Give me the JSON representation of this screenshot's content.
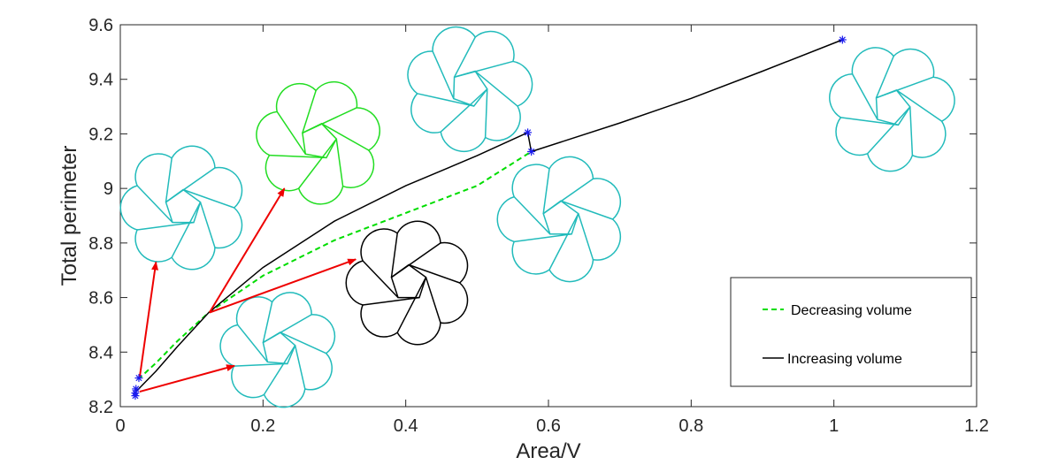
{
  "chart_data": {
    "type": "line",
    "title": "",
    "xlabel": "Area/V",
    "ylabel": "Total perimeter",
    "xlim": [
      0,
      1.2
    ],
    "ylim": [
      8.2,
      9.6
    ],
    "x_ticks": [
      "0",
      "0.2",
      "0.4",
      "0.6",
      "0.8",
      "1",
      "1.2"
    ],
    "y_ticks": [
      "8.2",
      "8.4",
      "8.6",
      "8.8",
      "9",
      "9.2",
      "9.4",
      "9.6"
    ],
    "grid": false,
    "legend_position": "bottom-right",
    "series": [
      {
        "name": "Decreasing volume",
        "color": "#00dd00",
        "style": "dashed",
        "points": [
          [
            0.025,
            8.3
          ],
          [
            0.05,
            8.36
          ],
          [
            0.08,
            8.44
          ],
          [
            0.124,
            8.545
          ],
          [
            0.2,
            8.68
          ],
          [
            0.3,
            8.81
          ],
          [
            0.4,
            8.91
          ],
          [
            0.5,
            9.01
          ],
          [
            0.576,
            9.135
          ]
        ]
      },
      {
        "name": "Increasing volume",
        "color": "#000000",
        "style": "solid",
        "points": [
          [
            0.02,
            8.25
          ],
          [
            0.05,
            8.33
          ],
          [
            0.08,
            8.42
          ],
          [
            0.124,
            8.545
          ],
          [
            0.2,
            8.71
          ],
          [
            0.3,
            8.88
          ],
          [
            0.4,
            9.01
          ],
          [
            0.5,
            9.12
          ],
          [
            0.571,
            9.205
          ],
          [
            0.576,
            9.135
          ],
          [
            0.7,
            9.24
          ],
          [
            0.8,
            9.33
          ],
          [
            0.9,
            9.43
          ],
          [
            1.012,
            9.545
          ]
        ]
      }
    ],
    "markers": [
      {
        "x": 0.022,
        "y": 8.265
      },
      {
        "x": 0.021,
        "y": 8.25
      },
      {
        "x": 0.021,
        "y": 8.24
      },
      {
        "x": 0.026,
        "y": 8.305
      },
      {
        "x": 0.571,
        "y": 9.205
      },
      {
        "x": 0.576,
        "y": 9.135
      },
      {
        "x": 1.012,
        "y": 9.545
      }
    ],
    "arrows": [
      {
        "from": [
          0.125,
          8.545
        ],
        "to": [
          0.23,
          9.0
        ]
      },
      {
        "from": [
          0.125,
          8.545
        ],
        "to": [
          0.33,
          8.74
        ]
      },
      {
        "from": [
          0.027,
          8.305
        ],
        "to": [
          0.05,
          8.73
        ]
      },
      {
        "from": [
          0.027,
          8.255
        ],
        "to": [
          0.16,
          8.35
        ]
      }
    ],
    "insets": [
      {
        "name": "cluster-a",
        "color": "#22bbbb",
        "style": "tri"
      },
      {
        "name": "cluster-b",
        "color": "#22dd22",
        "style": "ring"
      },
      {
        "name": "cluster-c",
        "color": "#22bbbb",
        "style": "ring"
      },
      {
        "name": "cluster-d",
        "color": "#22bbbb",
        "style": "ring"
      },
      {
        "name": "cluster-e",
        "color": "#22bbbb",
        "style": "ring"
      },
      {
        "name": "cluster-f",
        "color": "#22bbbb",
        "style": "ring"
      },
      {
        "name": "cluster-g",
        "color": "#000000",
        "style": "ring"
      }
    ]
  }
}
